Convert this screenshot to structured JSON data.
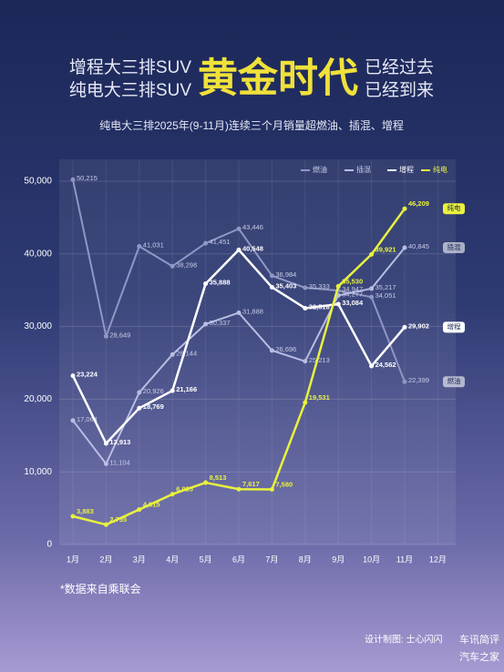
{
  "header": {
    "left_1": "增程大三排SUV",
    "left_2": "纯电大三排SUV",
    "highlight": "黄金时代",
    "right_1": "已经过去",
    "right_2": "已经到来"
  },
  "chart_data": {
    "type": "line",
    "subtitle": "纯电大三排2025年(9-11月)连续三个月销量超燃油、插混、增程",
    "source": "*数据来自乘联会",
    "credit": "设计制图: 士心闪闪",
    "watermark": [
      "车讯简评",
      "汽车之家"
    ],
    "categories": [
      "1月",
      "2月",
      "3月",
      "4月",
      "5月",
      "6月",
      "7月",
      "8月",
      "9月",
      "10月",
      "11月",
      "12月"
    ],
    "ylim": [
      0,
      53000
    ],
    "yticks": [
      0,
      {
        "value": 10000,
        "label": "10,000"
      },
      {
        "value": 20000,
        "label": "20,000"
      },
      {
        "value": 30000,
        "label": "30,000"
      },
      {
        "value": 40000,
        "label": "40,000"
      },
      {
        "value": 50000,
        "label": "50,000"
      }
    ],
    "grid": true,
    "legend": "top-right",
    "series": [
      {
        "name": "燃油",
        "color": "#8f97c4",
        "values": [
          50215,
          28649,
          41031,
          38298,
          41451,
          43446,
          36984,
          35333,
          34947,
          34051,
          22399,
          null
        ],
        "value_labels": [
          "50,215",
          "28,649",
          "41,031",
          "38,298",
          "41,451",
          "43,446",
          "36,984",
          "35,333",
          "34,947",
          "34,051",
          "22,399",
          null
        ]
      },
      {
        "name": "插混",
        "color": "#b9bde2",
        "values": [
          17064,
          11104,
          20926,
          26144,
          30337,
          31888,
          26696,
          25213,
          34277,
          35217,
          40845,
          null
        ],
        "value_labels": [
          "17,064",
          "11,104",
          "20,926",
          "26,144",
          "30,337",
          "31,888",
          "26,696",
          "25,213",
          "34,277",
          "35,217",
          "40,845",
          null
        ]
      },
      {
        "name": "增程",
        "color": "#ffffff",
        "values": [
          23224,
          13913,
          18769,
          21166,
          35888,
          40548,
          35403,
          32518,
          33084,
          24562,
          29902,
          null
        ],
        "value_labels": [
          "23,224",
          "13,913",
          "18,769",
          "21,166",
          "35,888",
          "40,548",
          "35,403",
          "32,518",
          "33,084",
          "24,562",
          "29,902",
          null
        ]
      },
      {
        "name": "纯电",
        "color": "#e9f23c",
        "values": [
          3883,
          2735,
          4815,
          6925,
          8513,
          7617,
          7580,
          19531,
          35530,
          39921,
          46209,
          null
        ],
        "value_labels": [
          "3,883",
          "2,735",
          "4,815",
          "6,925",
          "8,513",
          "7,617",
          "7,580",
          "19,531",
          "35,530",
          "39,921",
          "46,209",
          null
        ]
      }
    ]
  }
}
